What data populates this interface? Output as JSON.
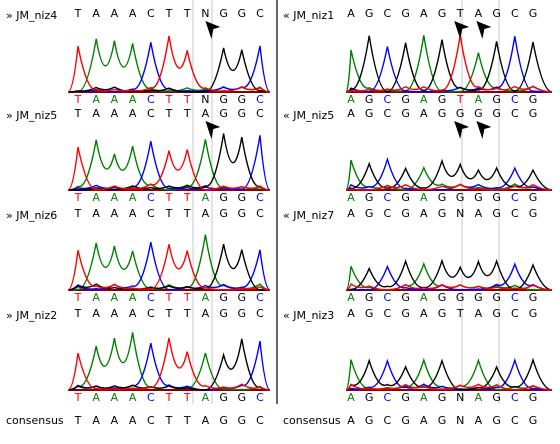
{
  "colors": {
    "A": "#008000",
    "C": "#0000ff",
    "G": "#000000",
    "T": "#ff0000",
    "N": "#000000"
  },
  "left_panel": {
    "samples": [
      {
        "label": "» JM_niz4",
        "called": "TAAACTTNGGC",
        "colored": "TAAACTTNGGC",
        "arrows": [
          7
        ]
      },
      {
        "label": "» JM_niz5",
        "called": "TAAACTTAGGC",
        "colored": "TAAACTTAGGC",
        "arrows": [
          7
        ]
      },
      {
        "label": "» JM_niz6",
        "called": "TAAACTTAGGC",
        "colored": "TAAACTTAGGC",
        "arrows": []
      },
      {
        "label": "» JM_niz2",
        "called": "TAAACTTAGGC",
        "colored": "TAAACTTAGGC",
        "arrows": []
      }
    ],
    "consensus": "TAAACTTAGGC"
  },
  "right_panel": {
    "samples": [
      {
        "label": "« JM_niz1",
        "called": "AGCGAGTAGCG",
        "colored": "AGCGAGTAGCG",
        "arrows": [
          6,
          7
        ]
      },
      {
        "label": "« JM_niz5",
        "called": "AGCGAGGGGCG",
        "colored": "AGCGAGGGGCG",
        "arrows": [
          6,
          7
        ]
      },
      {
        "label": "« JM_niz7",
        "called": "AGCGAGNAGCG",
        "colored": "AGCGAGGGGCG",
        "arrows": []
      },
      {
        "label": "« JM_niz3",
        "called": "AGCGAGTAGCG",
        "colored": "AGCGAGNAGCG",
        "arrows": []
      }
    ],
    "consensus": "AGCGAGNAGCG"
  },
  "consensus_label": "consensus"
}
